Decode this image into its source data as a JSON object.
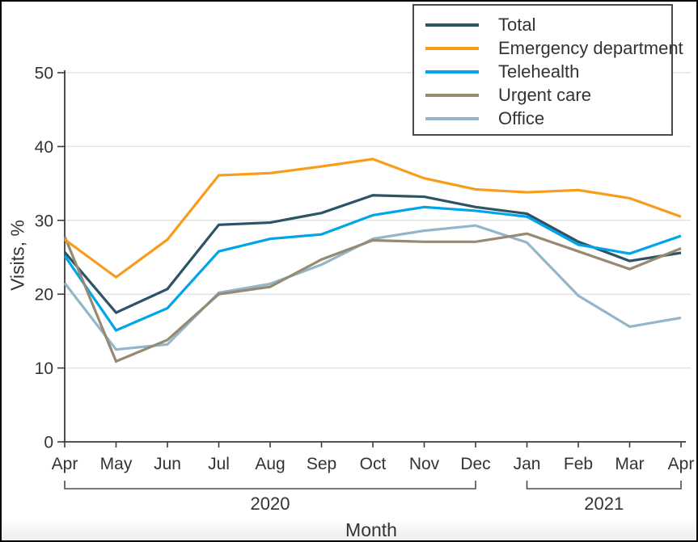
{
  "chart_data": {
    "type": "line",
    "title": "",
    "xlabel": "Month",
    "ylabel": "Visits, %",
    "ylim": [
      0,
      50
    ],
    "yticks": [
      0,
      10,
      20,
      30,
      40,
      50
    ],
    "grid": true,
    "legend_position": "top-right",
    "categories": [
      "Apr",
      "May",
      "Jun",
      "Jul",
      "Aug",
      "Sep",
      "Oct",
      "Nov",
      "Dec",
      "Jan",
      "Feb",
      "Mar",
      "Apr"
    ],
    "x_groups": [
      {
        "label": "2020",
        "from": 0,
        "to": 8
      },
      {
        "label": "2021",
        "from": 9,
        "to": 12
      }
    ],
    "series": [
      {
        "name": "Total",
        "color": "#2D5466",
        "values": [
          25.7,
          17.5,
          20.7,
          29.4,
          29.7,
          31.0,
          33.4,
          33.2,
          31.8,
          30.9,
          27.1,
          24.5,
          25.6
        ]
      },
      {
        "name": "Emergency department",
        "color": "#FA9C1B",
        "values": [
          27.4,
          22.3,
          27.4,
          36.1,
          36.4,
          37.3,
          38.3,
          35.7,
          34.2,
          33.8,
          34.1,
          33.0,
          30.5
        ]
      },
      {
        "name": "Telehealth",
        "color": "#00A5E9",
        "values": [
          25.2,
          15.1,
          18.1,
          25.8,
          27.5,
          28.1,
          30.7,
          31.8,
          31.3,
          30.5,
          26.7,
          25.5,
          27.9
        ]
      },
      {
        "name": "Urgent care",
        "color": "#968A72",
        "values": [
          27.8,
          10.9,
          13.8,
          20.0,
          21.0,
          24.7,
          27.3,
          27.1,
          27.1,
          28.2,
          25.8,
          23.4,
          26.2
        ]
      },
      {
        "name": "Office",
        "color": "#94B6CA",
        "values": [
          21.5,
          12.5,
          13.2,
          20.2,
          21.4,
          24.0,
          27.5,
          28.6,
          29.3,
          27.0,
          19.8,
          15.6,
          16.8
        ]
      }
    ],
    "draw_order": [
      "Office",
      "Total",
      "Telehealth",
      "Urgent care",
      "Emergency department"
    ]
  },
  "colors": {
    "text": "#333333",
    "axis": "#3b3b3b",
    "grid": "#e3e3e3",
    "bracket": "#4d4d4d",
    "legend_border": "#4a4a4a",
    "background": "#ffffff",
    "footer_band": "#efefef",
    "frame_border": "#000000"
  }
}
